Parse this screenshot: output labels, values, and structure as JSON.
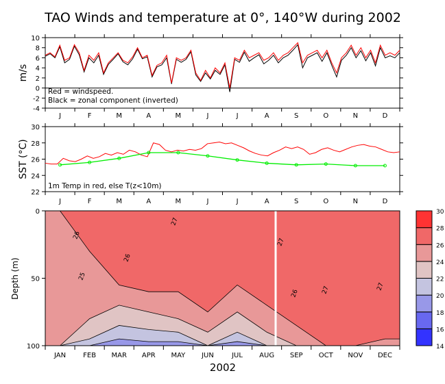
{
  "title": "TAO Winds and temperature at 0°, 140°W during 2002",
  "chart_data": [
    {
      "type": "line",
      "name": "winds",
      "ylabel": "m/s",
      "ylim": [
        -4,
        10
      ],
      "yticks": [
        -4,
        -2,
        0,
        2,
        4,
        6,
        8,
        10
      ],
      "annotations": [
        "Red = windspeed.",
        "Black = zonal component (inverted)"
      ],
      "month_labels": [
        "J",
        "F",
        "M",
        "A",
        "M",
        "J",
        "J",
        "A",
        "S",
        "O",
        "N",
        "D"
      ],
      "x_unit": "week of 2002",
      "series": [
        {
          "name": "windspeed",
          "color": "#ff0000",
          "values": [
            6.5,
            7,
            6.2,
            8.5,
            5.5,
            6,
            8.6,
            7,
            3.5,
            6.5,
            5.5,
            7,
            3,
            5,
            6,
            7,
            5.5,
            5,
            6.2,
            8,
            6,
            6.5,
            2.5,
            4.5,
            5,
            6.5,
            1,
            6,
            5.5,
            6,
            7.5,
            3,
            1.5,
            3.5,
            2,
            4,
            3,
            5,
            0,
            6,
            5.5,
            7.5,
            6,
            6.5,
            7,
            5.5,
            6,
            7,
            5.5,
            6.5,
            7,
            8,
            9,
            5,
            6.5,
            7,
            7.5,
            6,
            7.5,
            5,
            3,
            6,
            7,
            8.5,
            6.5,
            8,
            6,
            7.5,
            5,
            8.5,
            6.5,
            7,
            6.5,
            7.5
          ]
        },
        {
          "name": "zonal (inverted)",
          "color": "#000000",
          "values": [
            6.3,
            6.8,
            6,
            8.2,
            5,
            5.7,
            8.3,
            6.6,
            3.2,
            6,
            5,
            6.5,
            2.7,
            4.7,
            5.7,
            6.8,
            5.2,
            4.6,
            5.8,
            7.7,
            5.8,
            6.2,
            2.2,
            4.2,
            4.6,
            6,
            0.8,
            5.7,
            5.1,
            5.7,
            7.2,
            2.6,
            1.3,
            3,
            1.8,
            3.5,
            2.7,
            4.6,
            -0.8,
            5.7,
            5.1,
            7.1,
            5.3,
            6,
            6.6,
            4.8,
            5.5,
            6.5,
            5,
            6,
            6.5,
            7.5,
            8.6,
            4,
            6,
            6.5,
            7,
            5.3,
            7,
            4.5,
            2.2,
            5.5,
            6.5,
            8,
            6,
            7.4,
            5.4,
            7,
            4.4,
            8,
            6,
            6.4,
            6,
            7
          ]
        }
      ]
    },
    {
      "type": "line",
      "name": "sst",
      "ylabel": "SST (°C)",
      "ylim": [
        22,
        30
      ],
      "yticks": [
        22,
        24,
        26,
        28,
        30
      ],
      "annotations": [
        "1m Temp in red, else T(z<10m)"
      ],
      "month_labels": [
        "J",
        "F",
        "M",
        "A",
        "M",
        "J",
        "J",
        "A",
        "S",
        "O",
        "N",
        "D"
      ],
      "series": [
        {
          "name": "1m Temp",
          "color": "#ff0000",
          "values": [
            25.5,
            25.4,
            25.4,
            26.1,
            25.8,
            25.7,
            26,
            26.4,
            26.1,
            26.3,
            26.7,
            26.5,
            26.8,
            26.6,
            27.1,
            26.9,
            26.5,
            26.3,
            28,
            27.8,
            27.1,
            26.9,
            27.1,
            27,
            27.2,
            27.1,
            27.3,
            27.9,
            28,
            28.1,
            27.9,
            28,
            27.7,
            27.4,
            27,
            26.7,
            26.5,
            26.4,
            26.8,
            27.1,
            27.5,
            27.3,
            27.5,
            27.2,
            26.6,
            26.8,
            27.2,
            27.4,
            27.1,
            26.9,
            27.2,
            27.5,
            27.7,
            27.8,
            27.6,
            27.5,
            27.2,
            26.9,
            26.8,
            26.9
          ]
        },
        {
          "name": "T(z<10m)",
          "color": "#00ee00",
          "months": [
            1,
            2,
            3,
            4,
            5,
            6,
            7,
            8,
            9,
            10,
            11,
            12
          ],
          "values": [
            25.3,
            25.6,
            26.1,
            26.8,
            26.8,
            26.4,
            25.9,
            25.5,
            25.3,
            25.4,
            25.2,
            25.2
          ]
        }
      ]
    },
    {
      "type": "heatmap",
      "name": "depth-temperature",
      "ylabel": "Depth (m)",
      "xlabel": "2002",
      "ylim": [
        100,
        0
      ],
      "yticks": [
        0,
        50,
        100
      ],
      "x_labels": [
        "JAN",
        "FEB",
        "MAR",
        "APR",
        "MAY",
        "JUN",
        "JUL",
        "AUG",
        "SEP",
        "OCT",
        "NOV",
        "DEC"
      ],
      "colorbar": {
        "levels": [
          14,
          16,
          18,
          20,
          22,
          24,
          26,
          28,
          30
        ],
        "colors": [
          "#3333ff",
          "#6868f0",
          "#9898e8",
          "#c4c4e0",
          "#e0c4c4",
          "#e89898",
          "#f06868",
          "#ff3333"
        ]
      },
      "contour_labels": [
        "26",
        "27",
        "25"
      ],
      "isotherm_depths": {
        "26": [
          0,
          30,
          55,
          60,
          60,
          75,
          55,
          70,
          85,
          100,
          100,
          95
        ],
        "24": [
          100,
          80,
          70,
          75,
          80,
          90,
          75,
          90,
          100,
          100,
          100,
          100
        ],
        "22": [
          100,
          95,
          85,
          88,
          90,
          100,
          90,
          100,
          100,
          100,
          100,
          100
        ],
        "20": [
          100,
          100,
          95,
          97,
          97,
          100,
          97,
          100,
          100,
          100,
          100,
          100
        ]
      }
    }
  ]
}
